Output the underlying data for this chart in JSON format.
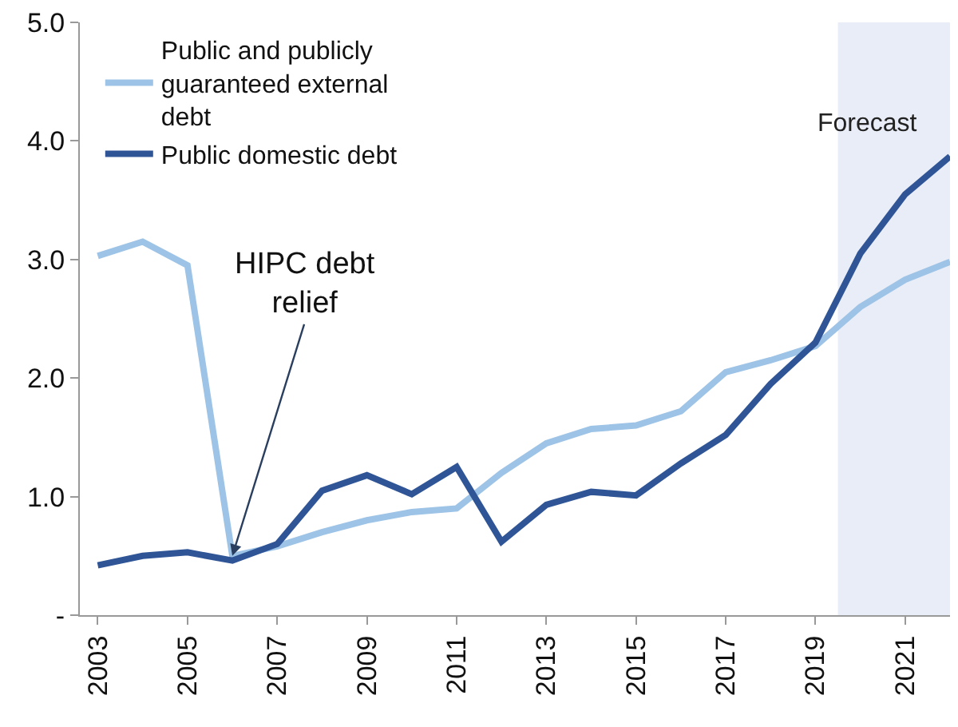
{
  "chart_data": {
    "type": "line",
    "x": [
      2003,
      2004,
      2005,
      2006,
      2007,
      2008,
      2009,
      2010,
      2011,
      2012,
      2013,
      2014,
      2015,
      2016,
      2017,
      2018,
      2019,
      2020,
      2021,
      2022
    ],
    "series": [
      {
        "name": "Public and publicly guaranteed external debt",
        "color": "#9dc3e6",
        "values": [
          3.03,
          3.15,
          2.95,
          0.5,
          0.58,
          0.7,
          0.8,
          0.87,
          0.9,
          1.2,
          1.45,
          1.57,
          1.6,
          1.72,
          2.05,
          2.15,
          2.27,
          2.6,
          2.83,
          2.98
        ]
      },
      {
        "name": "Public domestic debt",
        "color": "#2f5597",
        "values": [
          0.42,
          0.5,
          0.53,
          0.46,
          0.6,
          1.05,
          1.18,
          1.02,
          1.25,
          0.62,
          0.93,
          1.04,
          1.01,
          1.28,
          1.52,
          1.95,
          2.3,
          3.05,
          3.55,
          3.87
        ]
      }
    ],
    "xlim": [
      2002.6,
      2022
    ],
    "xticks": [
      2003,
      2005,
      2007,
      2009,
      2011,
      2013,
      2015,
      2017,
      2019,
      2021
    ],
    "ylim": [
      0,
      5
    ],
    "yticks": [
      {
        "value": 0,
        "label": "-"
      },
      {
        "value": 1,
        "label": "1.0"
      },
      {
        "value": 2,
        "label": "2.0"
      },
      {
        "value": 3,
        "label": "3.0"
      },
      {
        "value": 4,
        "label": "4.0"
      },
      {
        "value": 5,
        "label": "5.0"
      }
    ],
    "bands": [
      {
        "axis": "x",
        "from": 2019.5,
        "to": 2022,
        "label": "Forecast",
        "color": "#e9edf7"
      }
    ],
    "annotations": [
      {
        "text": "HIPC debt relief",
        "x": 2006,
        "y": 0.5
      }
    ],
    "legend": "top left",
    "grid": false,
    "marker": "none",
    "line_style": "solid"
  }
}
